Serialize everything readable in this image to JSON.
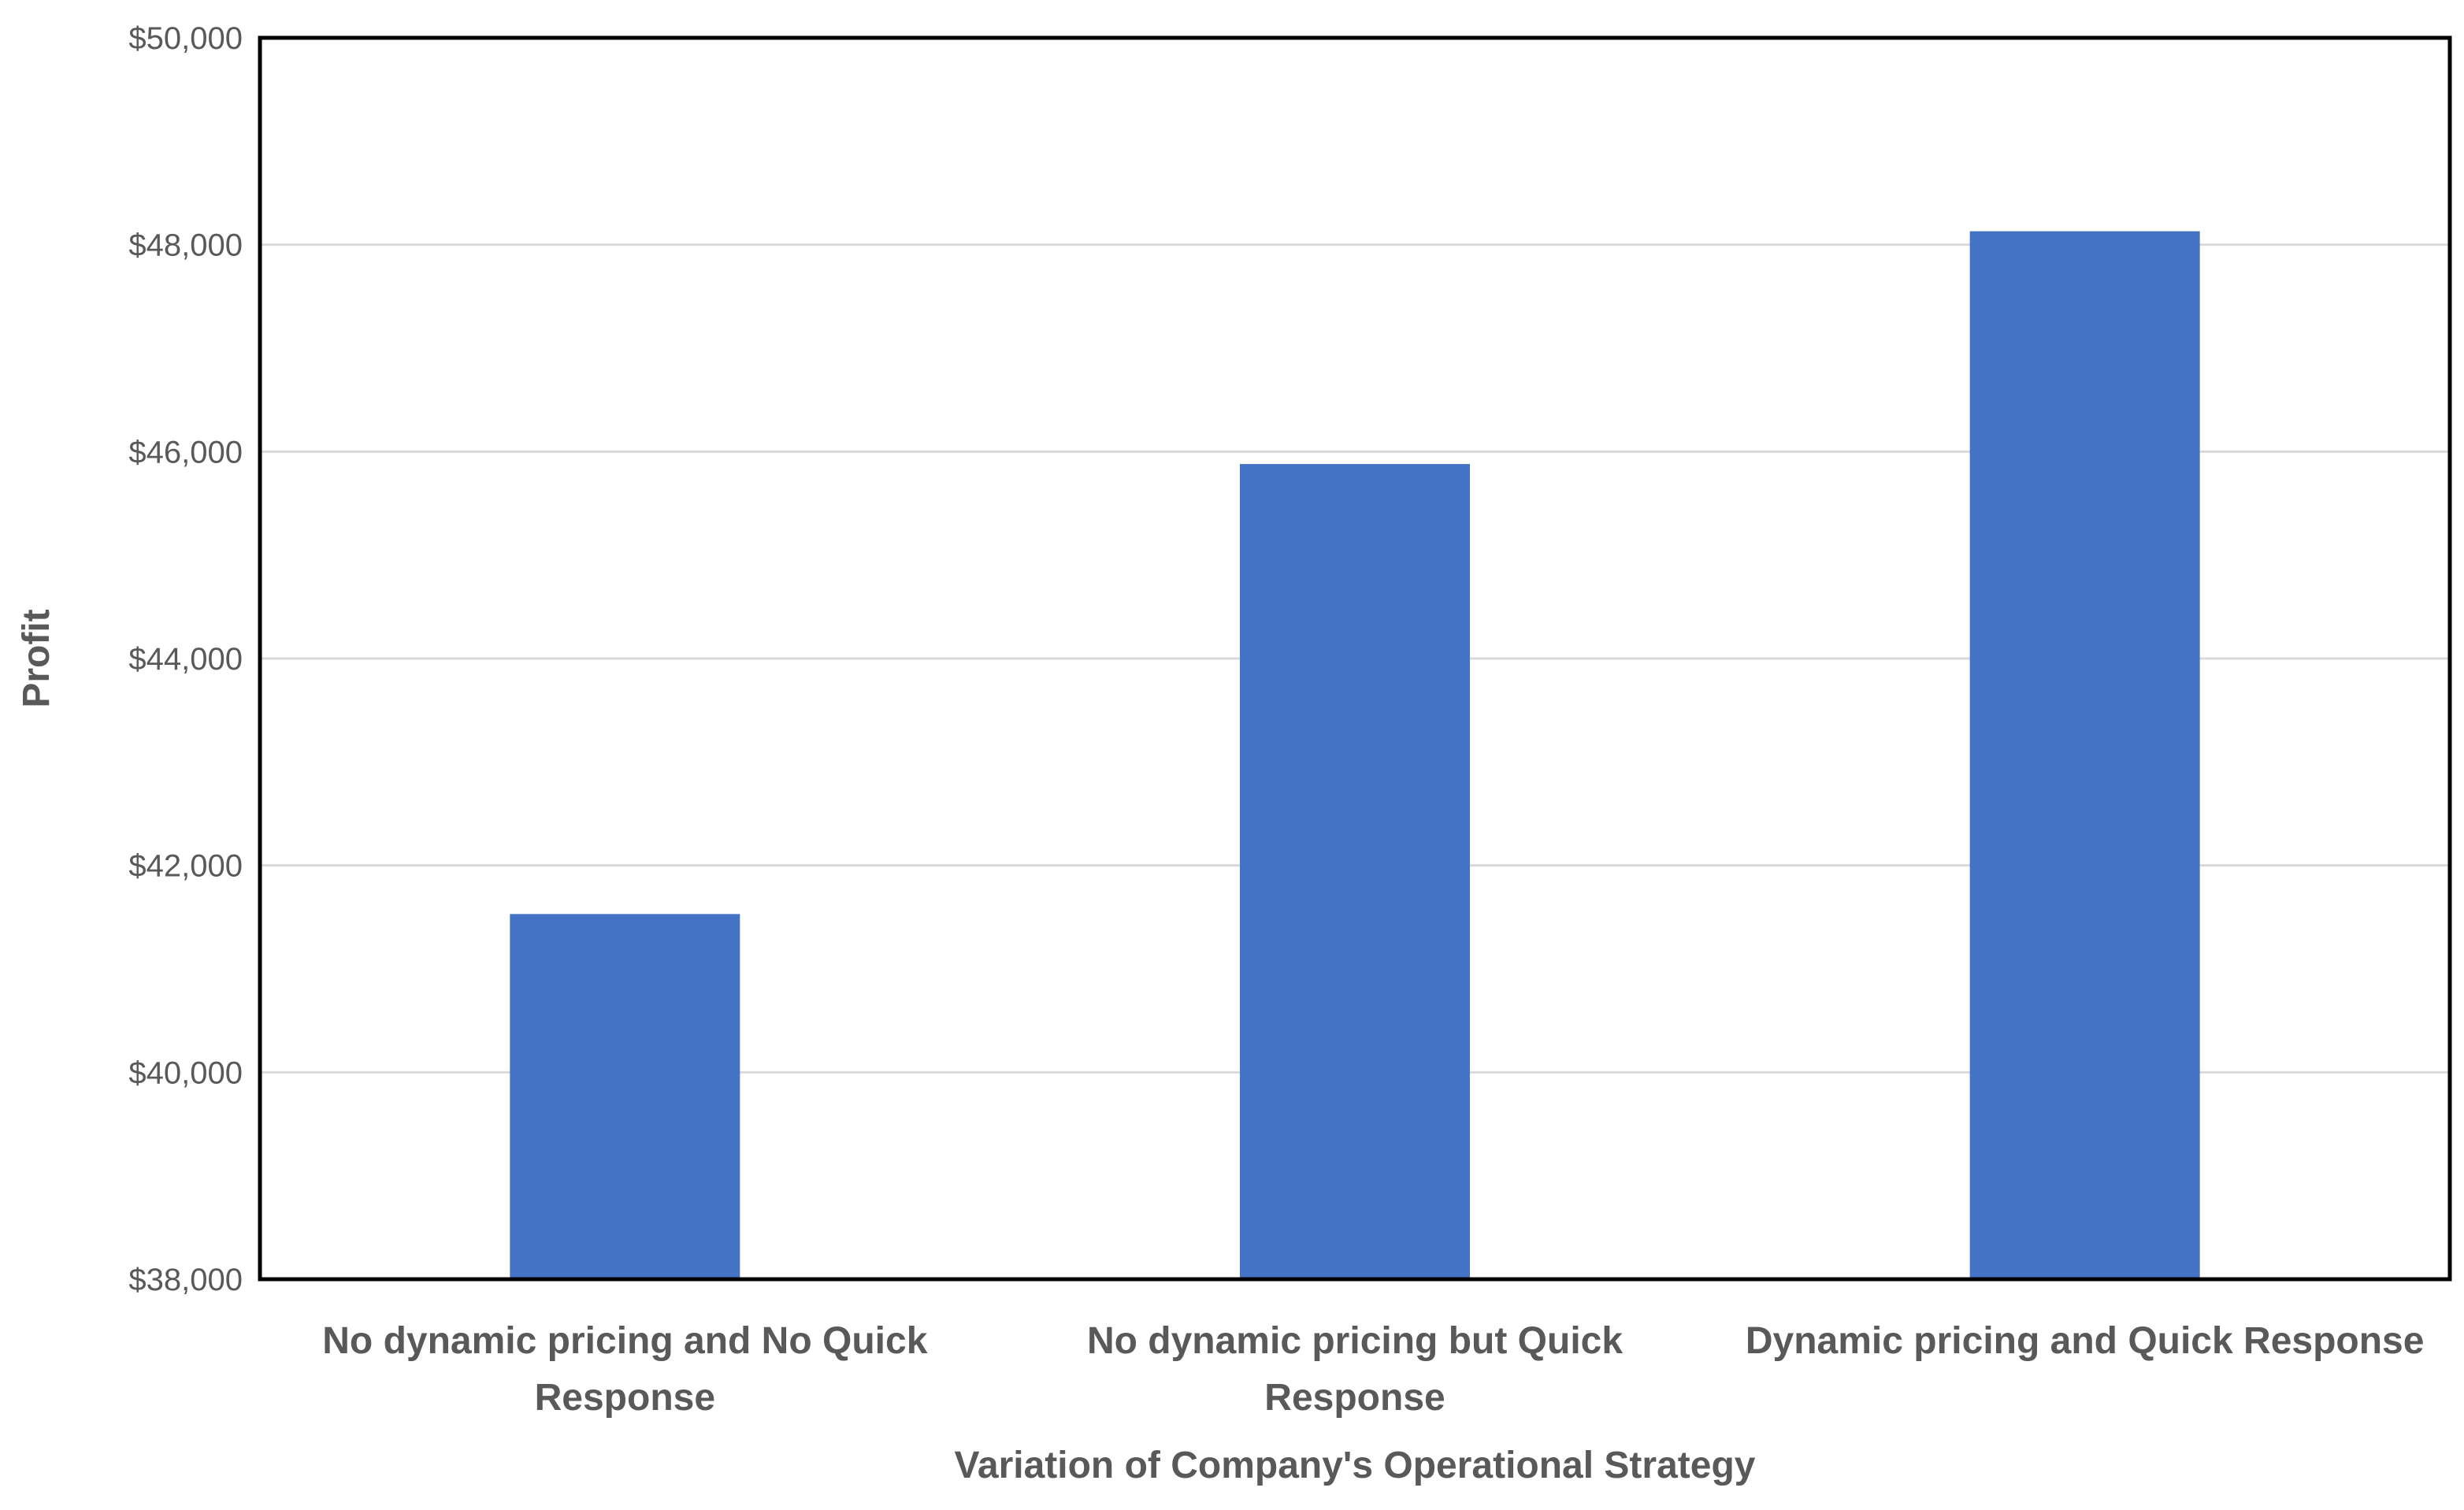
{
  "chart_data": {
    "type": "bar",
    "categories": [
      [
        "No dynamic pricing and No Quick",
        "Response"
      ],
      [
        "No dynamic pricing but Quick",
        "Response"
      ],
      [
        "Dynamic pricing and Quick Response"
      ]
    ],
    "values": [
      41530,
      45880,
      48130
    ],
    "xlabel": "Variation of Company's Operational Strategy",
    "ylabel": "Profit",
    "ylim": [
      38000,
      50000
    ],
    "yticks": [
      38000,
      40000,
      42000,
      44000,
      46000,
      48000,
      50000
    ],
    "ytick_labels": [
      "$38,000",
      "$40,000",
      "$42,000",
      "$44,000",
      "$46,000",
      "$48,000",
      "$50,000"
    ],
    "bar_color": "#4472C4",
    "grid": true,
    "legend": false
  }
}
